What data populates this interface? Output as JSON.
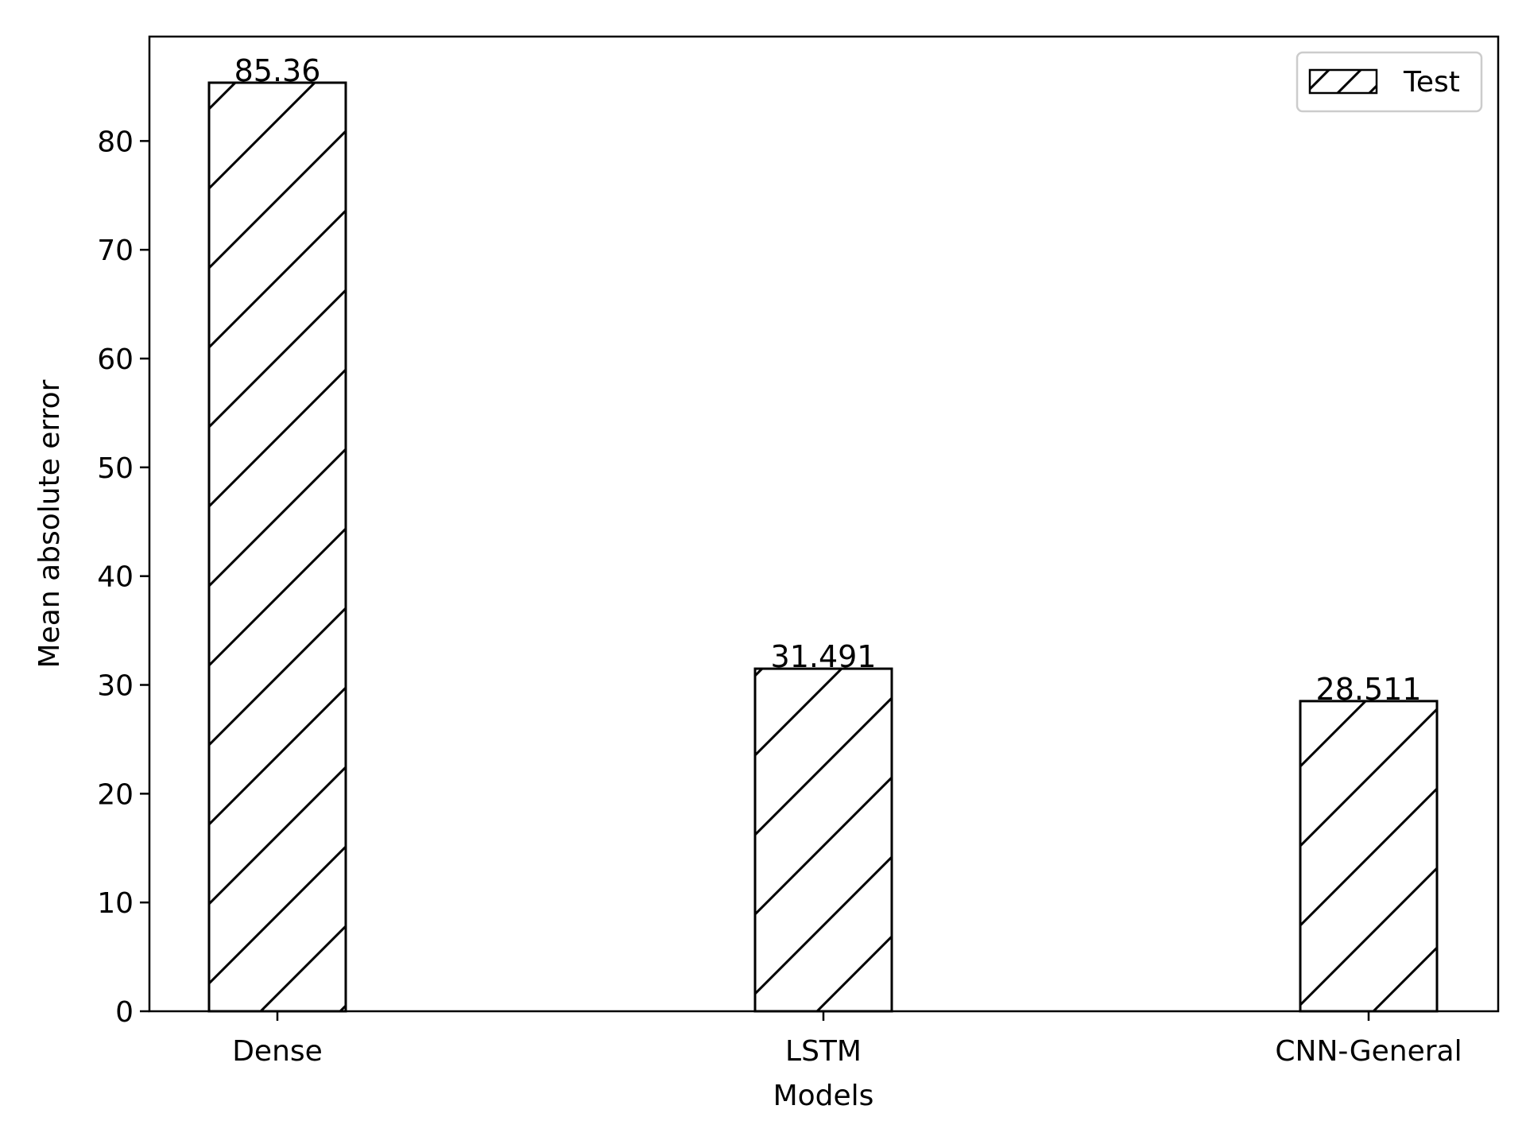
{
  "chart_data": {
    "type": "bar",
    "categories": [
      "Dense",
      "LSTM",
      "CNN-General"
    ],
    "series": [
      {
        "name": "Test",
        "values": [
          85.36,
          31.491,
          28.511
        ]
      }
    ],
    "data_labels": [
      "85.36",
      "31.491",
      "28.511"
    ],
    "title": "",
    "xlabel": "Models",
    "ylabel": "Mean absolute error",
    "ylim": [
      0,
      89.6
    ],
    "yticks": [
      0,
      10,
      20,
      30,
      40,
      50,
      60,
      70,
      80
    ],
    "grid": false,
    "legend": {
      "position": "top-right",
      "entries": [
        "Test"
      ]
    },
    "bar_fill": "#ffffff",
    "bar_edge": "#000000",
    "hatch": "diagonal"
  }
}
